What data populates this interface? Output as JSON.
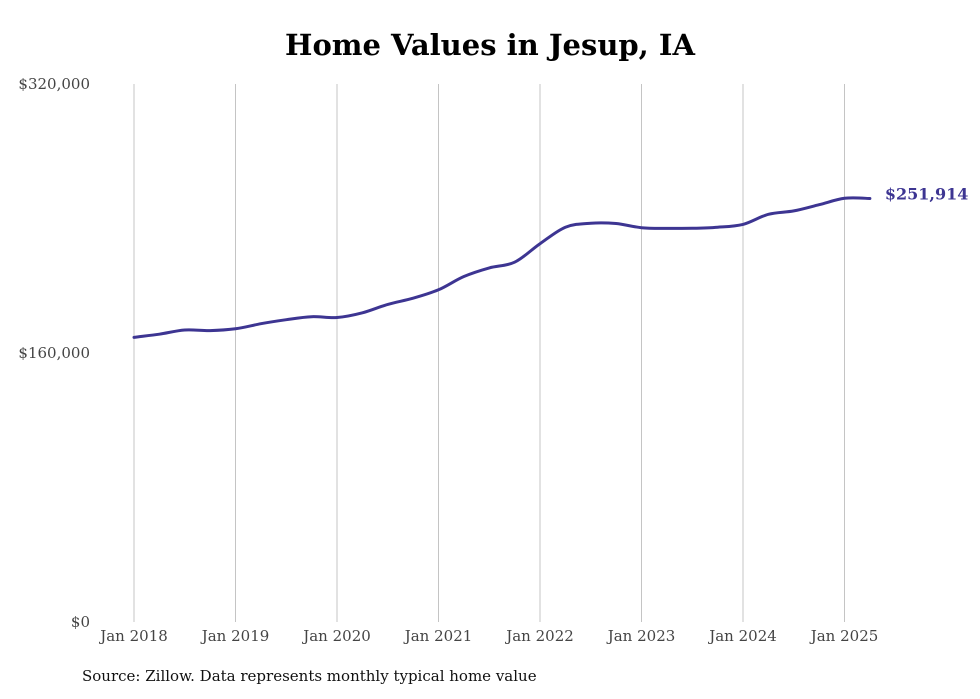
{
  "chart_data": {
    "type": "line",
    "title": "Home Values in Jesup, IA",
    "source_note": "Source: Zillow. Data represents monthly typical home value",
    "xlabel": "",
    "ylabel": "",
    "ylim": [
      0,
      320000
    ],
    "y_ticks": [
      {
        "value": 0,
        "label": "$0"
      },
      {
        "value": 160000,
        "label": "$160,000"
      },
      {
        "value": 320000,
        "label": "$320,000"
      }
    ],
    "x_ticks": [
      {
        "year": 2018,
        "label": "Jan 2018"
      },
      {
        "year": 2019,
        "label": "Jan 2019"
      },
      {
        "year": 2020,
        "label": "Jan 2020"
      },
      {
        "year": 2021,
        "label": "Jan 2021"
      },
      {
        "year": 2022,
        "label": "Jan 2022"
      },
      {
        "year": 2023,
        "label": "Jan 2023"
      },
      {
        "year": 2024,
        "label": "Jan 2024"
      },
      {
        "year": 2025,
        "label": "Jan 2025"
      }
    ],
    "grid": "vertical",
    "series": [
      {
        "color": "#3d3592",
        "end_label": "$251,914",
        "points": [
          [
            "2018-01",
            169300
          ],
          [
            "2018-04",
            171200
          ],
          [
            "2018-07",
            173700
          ],
          [
            "2018-10",
            173300
          ],
          [
            "2019-01",
            174400
          ],
          [
            "2019-04",
            177400
          ],
          [
            "2019-07",
            179800
          ],
          [
            "2019-10",
            181600
          ],
          [
            "2020-01",
            181100
          ],
          [
            "2020-04",
            183900
          ],
          [
            "2020-07",
            188900
          ],
          [
            "2020-10",
            192600
          ],
          [
            "2021-01",
            197600
          ],
          [
            "2021-04",
            205500
          ],
          [
            "2021-07",
            210600
          ],
          [
            "2021-10",
            214000
          ],
          [
            "2022-01",
            225000
          ],
          [
            "2022-04",
            234800
          ],
          [
            "2022-07",
            237200
          ],
          [
            "2022-10",
            237000
          ],
          [
            "2023-01",
            234500
          ],
          [
            "2023-04",
            234100
          ],
          [
            "2023-07",
            234200
          ],
          [
            "2023-10",
            234800
          ],
          [
            "2024-01",
            236500
          ],
          [
            "2024-04",
            242500
          ],
          [
            "2024-07",
            244500
          ],
          [
            "2024-10",
            248200
          ],
          [
            "2025-01",
            252000
          ],
          [
            "2025-04",
            251914
          ]
        ]
      }
    ]
  }
}
